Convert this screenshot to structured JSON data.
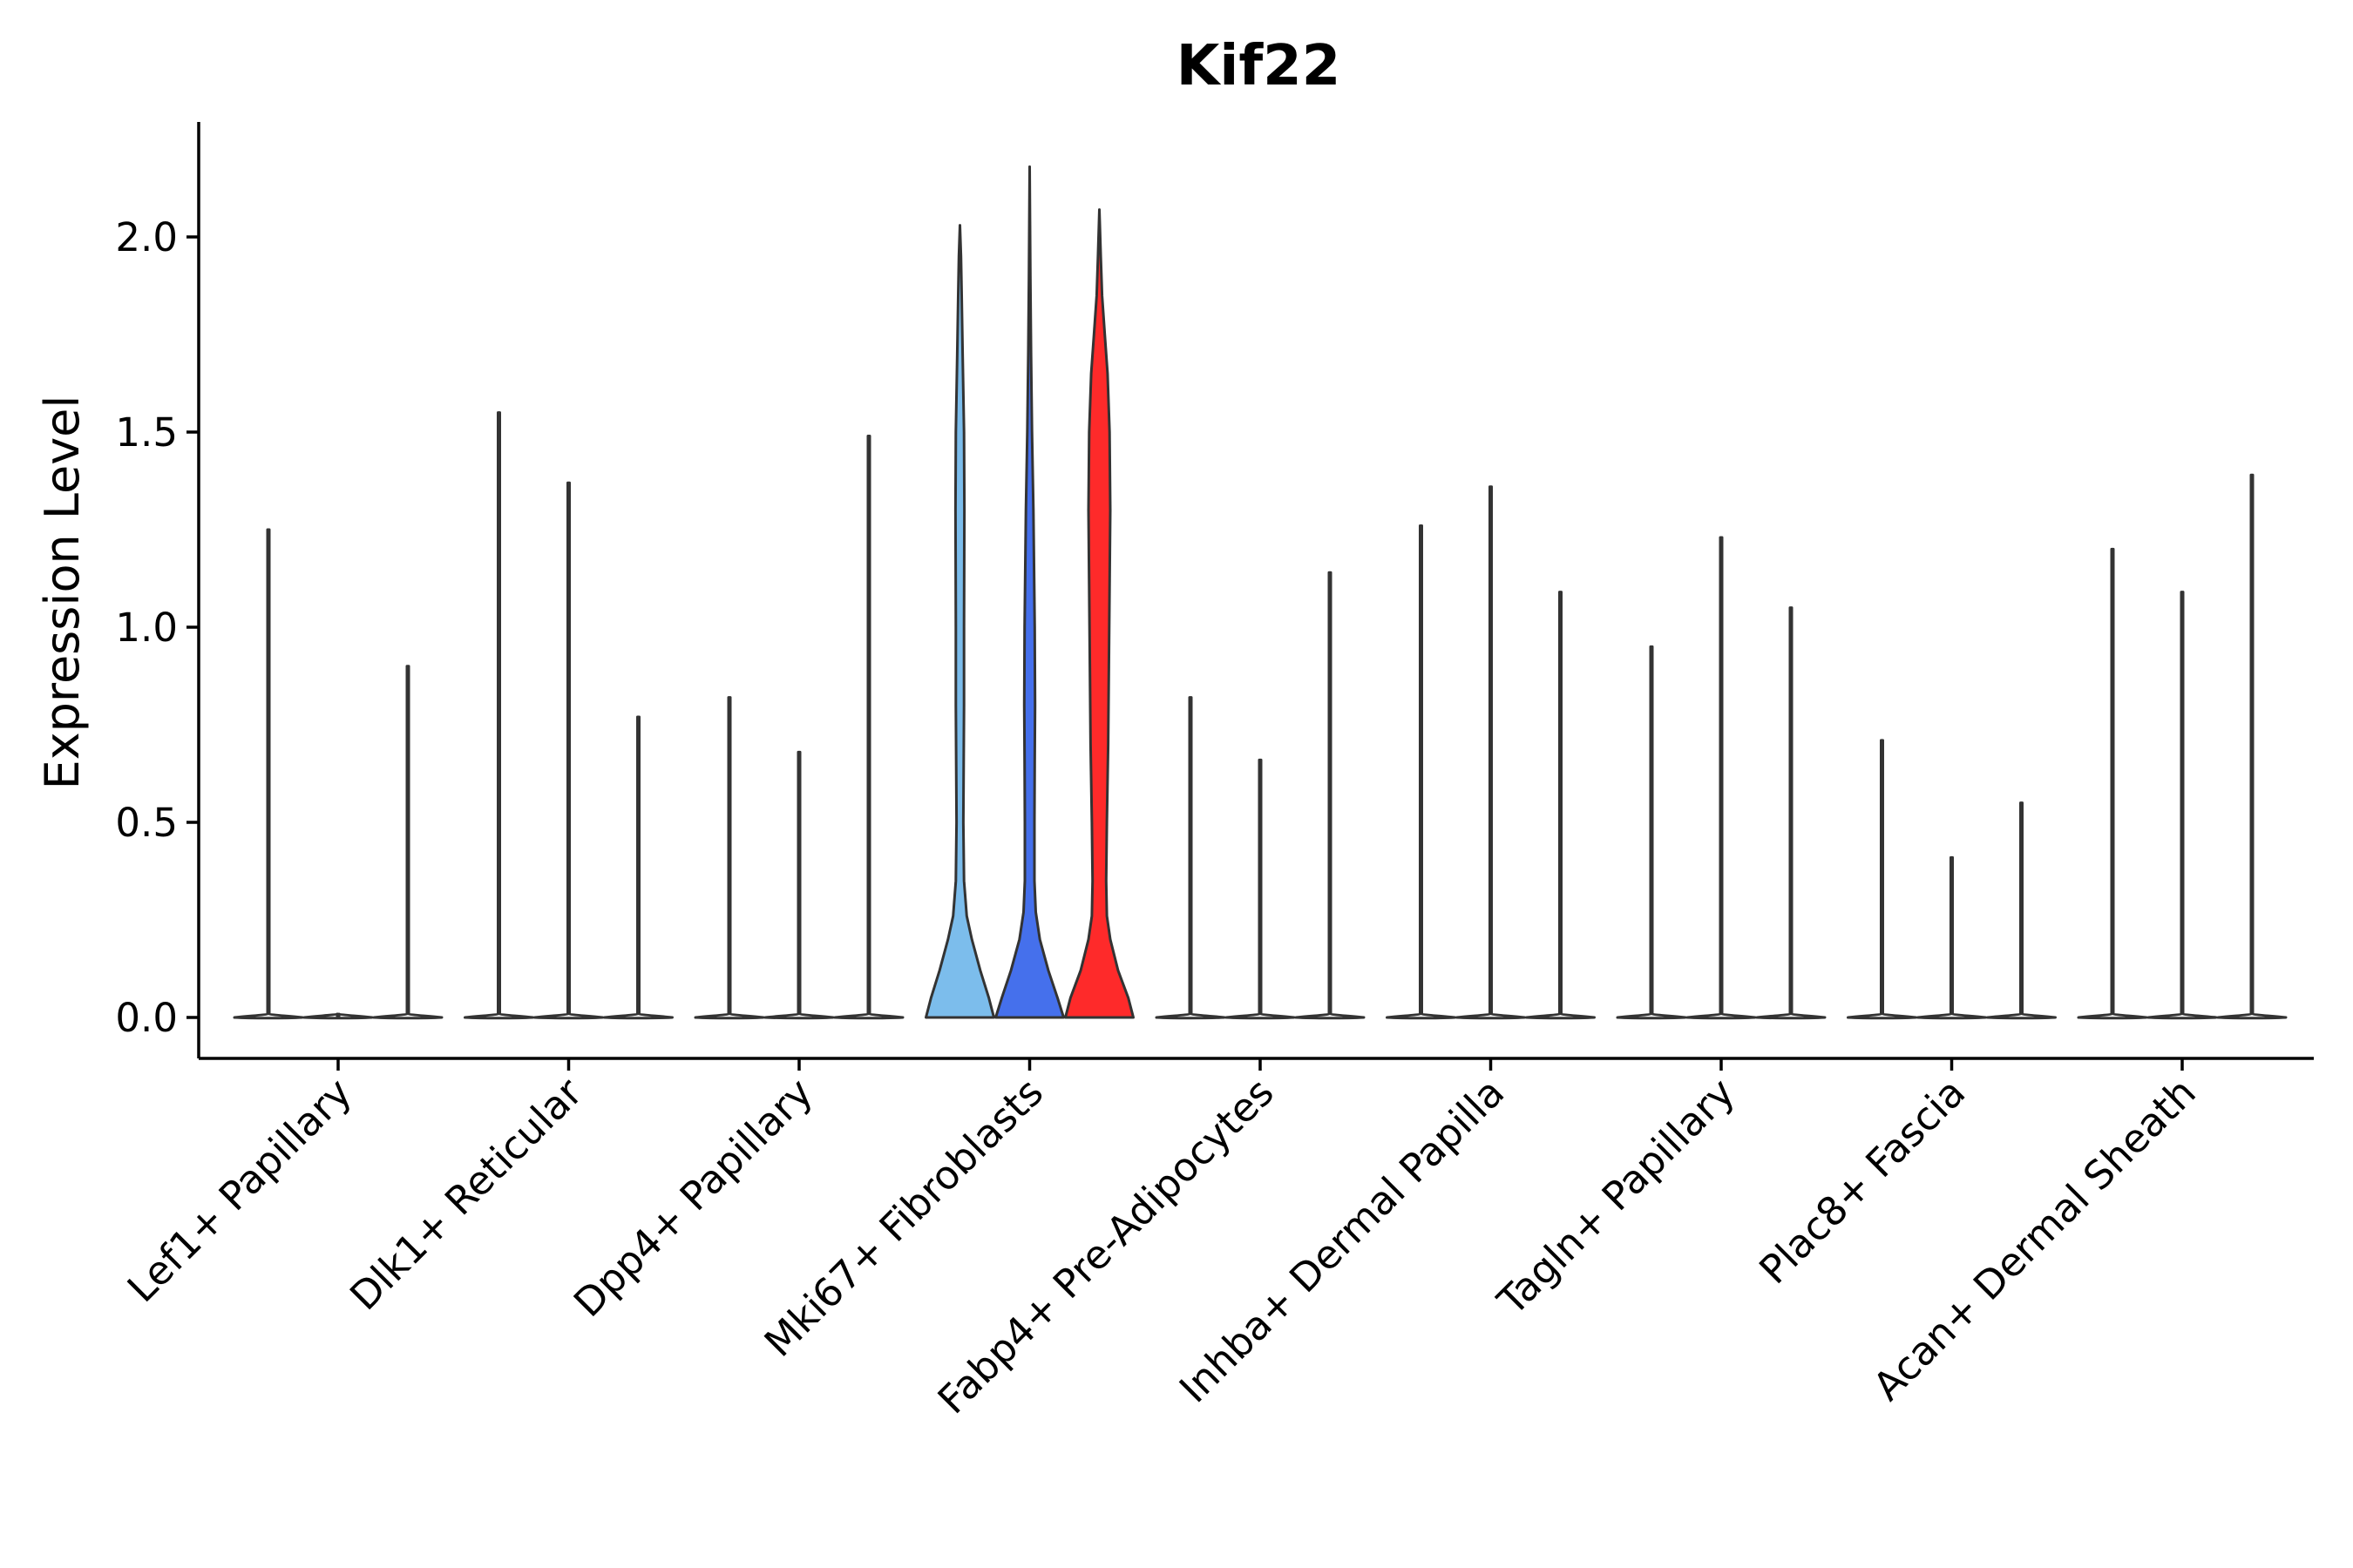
{
  "chart_data": {
    "type": "violin",
    "title": "Kif22",
    "xlabel": "",
    "ylabel": "Expression Level",
    "ylim": [
      -0.11,
      2.3
    ],
    "yticks": [
      0.0,
      0.5,
      1.0,
      1.5,
      2.0
    ],
    "ytick_labels": [
      "0.0",
      "0.5",
      "1.0",
      "1.5",
      "2.0"
    ],
    "categories": [
      "Lef1+ Papillary",
      "Dlk1+ Reticular",
      "Dpp4+ Papillary",
      "Mki67+ Fibroblasts",
      "Fabp4+ Pre-Adipocytes",
      "Inhba+ Dermal Papilla",
      "Tagln+ Papillary",
      "Plac8+ Fascia",
      "Acan+ Dermal Sheath"
    ],
    "groups": [
      {
        "category": "Lef1+ Papillary",
        "violins": [
          {
            "max": 1.25,
            "color": "#ffffff"
          },
          {
            "max": 0.0,
            "color": "#ffffff"
          },
          {
            "max": 0.9,
            "color": "#ffffff"
          }
        ]
      },
      {
        "category": "Dlk1+ Reticular",
        "violins": [
          {
            "max": 1.55,
            "color": "#ffffff"
          },
          {
            "max": 1.37,
            "color": "#ffffff"
          },
          {
            "max": 0.77,
            "color": "#ffffff"
          }
        ]
      },
      {
        "category": "Dpp4+ Papillary",
        "violins": [
          {
            "max": 0.82,
            "color": "#ffffff"
          },
          {
            "max": 0.68,
            "color": "#ffffff"
          },
          {
            "max": 1.49,
            "color": "#ffffff"
          }
        ]
      },
      {
        "category": "Mki67+ Fibroblasts",
        "violins": [
          {
            "max": 2.03,
            "color": "#7cbdec"
          },
          {
            "max": 2.18,
            "color": "#4570ec"
          },
          {
            "max": 2.07,
            "color": "#fe2a2a"
          }
        ]
      },
      {
        "category": "Fabp4+ Pre-Adipocytes",
        "violins": [
          {
            "max": 0.82,
            "color": "#ffffff"
          },
          {
            "max": 0.66,
            "color": "#ffffff"
          },
          {
            "max": 1.14,
            "color": "#ffffff"
          }
        ]
      },
      {
        "category": "Inhba+ Dermal Papilla",
        "violins": [
          {
            "max": 1.26,
            "color": "#ffffff"
          },
          {
            "max": 1.36,
            "color": "#ffffff"
          },
          {
            "max": 1.09,
            "color": "#ffffff"
          }
        ]
      },
      {
        "category": "Tagln+ Papillary",
        "violins": [
          {
            "max": 0.95,
            "color": "#ffffff"
          },
          {
            "max": 1.23,
            "color": "#ffffff"
          },
          {
            "max": 1.05,
            "color": "#ffffff"
          }
        ]
      },
      {
        "category": "Plac8+ Fascia",
        "violins": [
          {
            "max": 0.71,
            "color": "#ffffff"
          },
          {
            "max": 0.41,
            "color": "#ffffff"
          },
          {
            "max": 0.55,
            "color": "#ffffff"
          }
        ]
      },
      {
        "category": "Acan+ Dermal Sheath",
        "violins": [
          {
            "max": 1.2,
            "color": "#ffffff"
          },
          {
            "max": 1.09,
            "color": "#ffffff"
          },
          {
            "max": 1.39,
            "color": "#ffffff"
          }
        ]
      }
    ],
    "shaped_violins": {
      "Mki67+ Fibroblasts": [
        {
          "profile": [
            [
              0.0,
              1.0
            ],
            [
              0.05,
              0.85
            ],
            [
              0.12,
              0.6
            ],
            [
              0.2,
              0.35
            ],
            [
              0.26,
              0.2
            ],
            [
              0.35,
              0.12
            ],
            [
              0.5,
              0.1
            ],
            [
              0.65,
              0.11
            ],
            [
              0.8,
              0.12
            ],
            [
              1.0,
              0.12
            ],
            [
              1.3,
              0.13
            ],
            [
              1.5,
              0.12
            ],
            [
              1.7,
              0.08
            ],
            [
              1.85,
              0.05
            ],
            [
              1.95,
              0.03
            ],
            [
              2.03,
              0.0
            ]
          ]
        },
        {
          "profile": [
            [
              0.0,
              1.0
            ],
            [
              0.05,
              0.82
            ],
            [
              0.12,
              0.55
            ],
            [
              0.2,
              0.3
            ],
            [
              0.27,
              0.18
            ],
            [
              0.35,
              0.14
            ],
            [
              0.5,
              0.14
            ],
            [
              0.65,
              0.15
            ],
            [
              0.8,
              0.16
            ],
            [
              1.0,
              0.15
            ],
            [
              1.3,
              0.11
            ],
            [
              1.5,
              0.07
            ],
            [
              1.7,
              0.04
            ],
            [
              1.9,
              0.02
            ],
            [
              2.18,
              0.0
            ]
          ]
        },
        {
          "profile": [
            [
              0.0,
              1.0
            ],
            [
              0.05,
              0.85
            ],
            [
              0.12,
              0.55
            ],
            [
              0.2,
              0.32
            ],
            [
              0.26,
              0.22
            ],
            [
              0.35,
              0.2
            ],
            [
              0.5,
              0.22
            ],
            [
              0.7,
              0.26
            ],
            [
              0.9,
              0.28
            ],
            [
              1.1,
              0.3
            ],
            [
              1.3,
              0.32
            ],
            [
              1.5,
              0.3
            ],
            [
              1.65,
              0.24
            ],
            [
              1.75,
              0.16
            ],
            [
              1.85,
              0.08
            ],
            [
              1.95,
              0.04
            ],
            [
              2.07,
              0.0
            ]
          ]
        }
      ]
    }
  }
}
